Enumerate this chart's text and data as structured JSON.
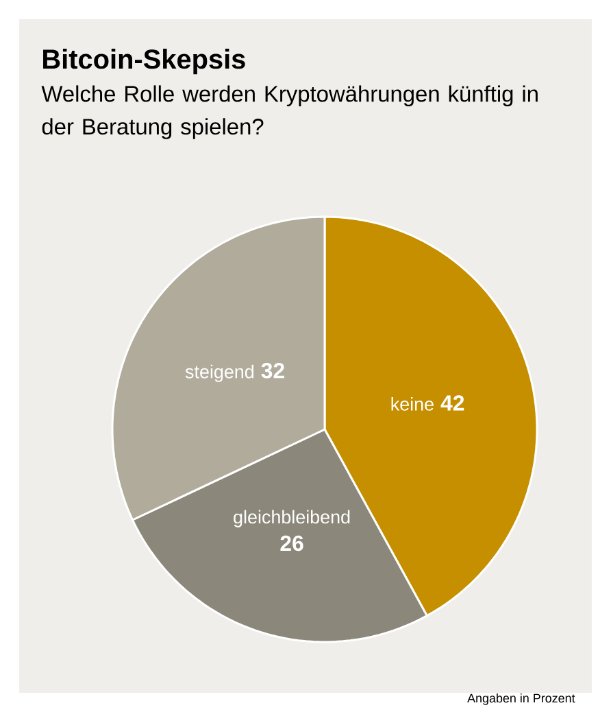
{
  "chart_data": {
    "type": "pie",
    "title": "Bitcoin-Skepsis",
    "subtitle": "Welche Rolle werden Kryptowährungen künftig in der Beratung spielen?",
    "categories": [
      "keine",
      "gleichbleibend",
      "steigend"
    ],
    "values": [
      42,
      26,
      32
    ],
    "colors": [
      "#c58f00",
      "#8b887b",
      "#b1ab9c"
    ],
    "data_labels": true,
    "annotations": [
      "Angaben in Prozent"
    ]
  }
}
